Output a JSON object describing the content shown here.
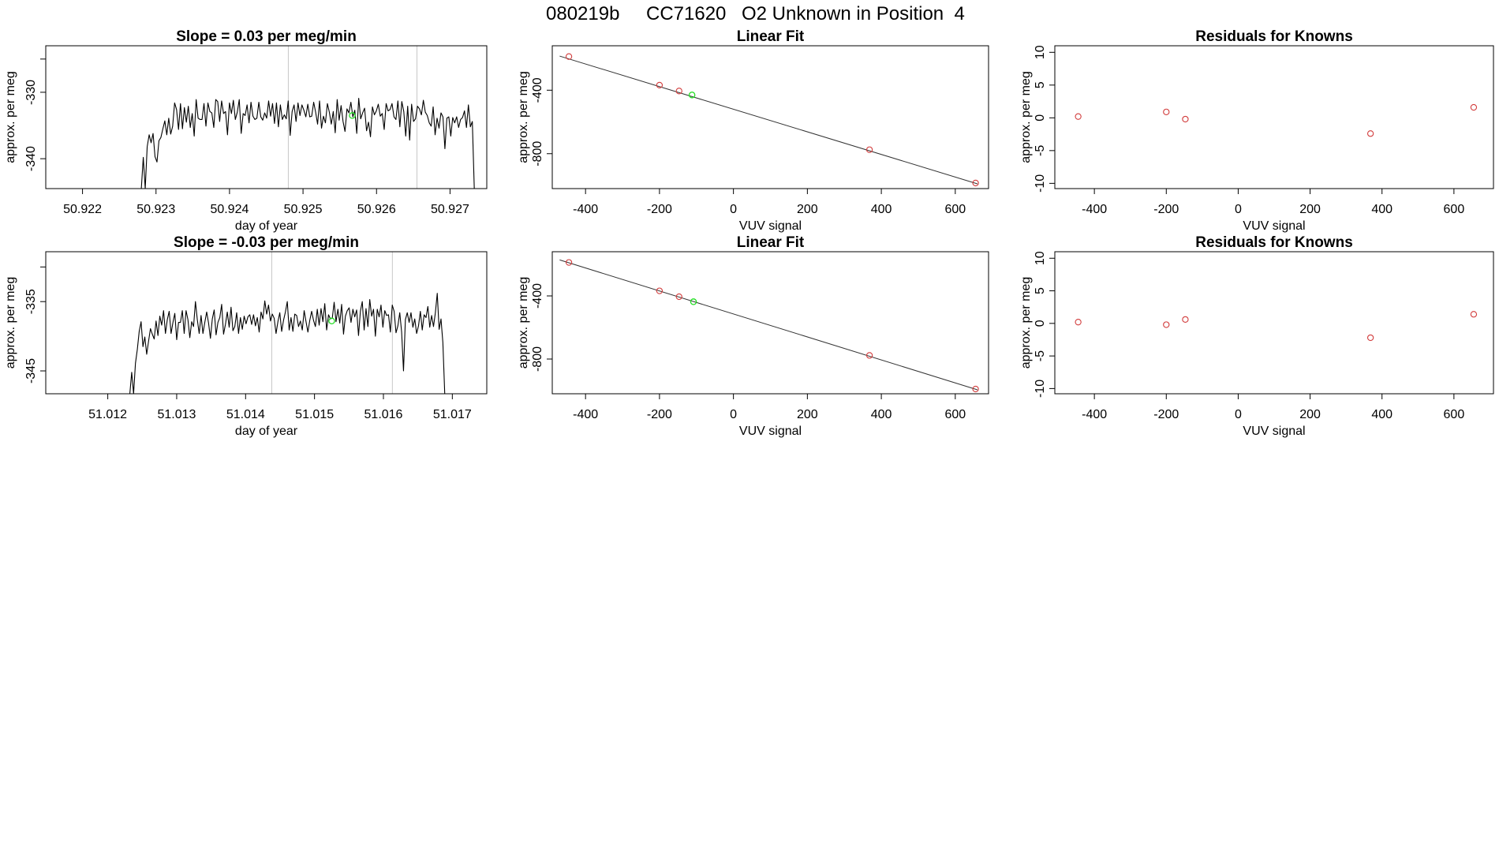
{
  "header": {
    "run_id": "080219b",
    "cylinder": "CC71620",
    "description": "O2 Unknown in Position  4"
  },
  "colors": {
    "trace": "#000000",
    "known_point": "#d23c3c",
    "unknown_point": "#22dd22",
    "divider": "#c8c8c8",
    "fit_line": "#333333"
  },
  "chart_data": [
    {
      "id": "time-series-1",
      "type": "line",
      "title": "Slope =  0.03  per meg/min",
      "xlabel": "day of year",
      "ylabel": "approx. per meg",
      "xlim": [
        50.9215,
        50.9275
      ],
      "ylim": [
        -344.5,
        -323
      ],
      "xticks": [
        50.922,
        50.923,
        50.924,
        50.925,
        50.926,
        50.927
      ],
      "xtick_labels": [
        "50.922",
        "50.923",
        "50.924",
        "50.925",
        "50.926",
        "50.927"
      ],
      "yticks": [
        -340,
        -330
      ],
      "ytick_labels": [
        "-340",
        "-330"
      ],
      "extra_ytick": -325,
      "dividers_x": [
        50.9248,
        50.92655
      ],
      "series_x_range": [
        50.9228,
        50.92733
      ],
      "series_y": [
        -344.5,
        -339.8,
        -344.5,
        -338.2,
        -336.4,
        -337.6,
        -336.2,
        -339.7,
        -340.5,
        -337.3,
        -336.8,
        -335.5,
        -334.3,
        -336.4,
        -333.9,
        -336.3,
        -335.1,
        -331.6,
        -332.6,
        -335.6,
        -331.7,
        -335.5,
        -332.3,
        -334.5,
        -332.1,
        -335.3,
        -333.2,
        -336.6,
        -331.1,
        -333.9,
        -334.1,
        -334.1,
        -331.7,
        -335.1,
        -331.6,
        -332.9,
        -333.1,
        -335.3,
        -331.1,
        -331.4,
        -334.4,
        -331.3,
        -333.2,
        -332.9,
        -336.4,
        -331.6,
        -333.2,
        -331.2,
        -334.1,
        -333.0,
        -331.1,
        -336.2,
        -333.2,
        -333.5,
        -331.9,
        -334.6,
        -331.5,
        -333.6,
        -334.1,
        -333.9,
        -331.5,
        -333.7,
        -334.2,
        -333.1,
        -333.9,
        -331.3,
        -333.6,
        -331.7,
        -334.7,
        -331.6,
        -335.2,
        -331.9,
        -334.1,
        -333.4,
        -334.0,
        -331.3,
        -336.5,
        -332.9,
        -331.9,
        -334.4,
        -331.6,
        -333.5,
        -331.9,
        -332.7,
        -333.7,
        -331.8,
        -333.7,
        -333.6,
        -331.5,
        -333.0,
        -334.8,
        -331.3,
        -335.4,
        -333.6,
        -334.6,
        -331.7,
        -333.0,
        -334.8,
        -332.9,
        -336.1,
        -331.1,
        -334.2,
        -332.0,
        -334.4,
        -335.9,
        -332.5,
        -333.1,
        -331.5,
        -333.7,
        -332.7,
        -336.2,
        -330.9,
        -334.0,
        -333.1,
        -332.4,
        -335.8,
        -334.5,
        -336.7,
        -332.2,
        -333.4,
        -332.8,
        -331.8,
        -333.6,
        -333.2,
        -335.6,
        -331.7,
        -332.8,
        -332.6,
        -331.7,
        -333.7,
        -334.1,
        -331.3,
        -335.2,
        -331.4,
        -332.9,
        -336.6,
        -332.1,
        -337.2,
        -331.8,
        -334.4,
        -334.0,
        -332.1,
        -332.5,
        -333.4,
        -331.2,
        -333.0,
        -333.5,
        -334.6,
        -335.1,
        -332.2,
        -336.4,
        -333.9,
        -335.4,
        -333.1,
        -333.7,
        -338.5,
        -333.9,
        -333.7,
        -336.6,
        -333.8,
        -334.6,
        -333.7,
        -335.3,
        -334.1,
        -333.8,
        -332.8,
        -335.3,
        -331.9,
        -335.2,
        -334.4,
        -344.5
      ],
      "unknown_point": [
        50.92567,
        -333.5
      ]
    },
    {
      "id": "linear-fit-1",
      "type": "scatter",
      "title": "Linear Fit",
      "xlabel": "VUV signal",
      "ylabel": "approx. per meg",
      "xlim": [
        -490,
        690
      ],
      "ylim": [
        -1020,
        -120
      ],
      "xticks": [
        -400,
        -200,
        0,
        200,
        400,
        600
      ],
      "xtick_labels": [
        "-400",
        "-200",
        "0",
        "200",
        "400",
        "600"
      ],
      "yticks": [
        -800,
        -400
      ],
      "ytick_labels": [
        "-800",
        "-400"
      ],
      "fit_line": [
        [
          -470,
          -185
        ],
        [
          660,
          -990
        ]
      ],
      "known_points": [
        [
          -445,
          -188
        ],
        [
          -200,
          -368
        ],
        [
          -147,
          -405
        ],
        [
          368,
          -775
        ],
        [
          655,
          -985
        ]
      ],
      "unknown_point": [
        -112,
        -430
      ]
    },
    {
      "id": "residuals-1",
      "type": "scatter",
      "title": "Residuals for Knowns",
      "xlabel": "VUV signal",
      "ylabel": "approx. per meg",
      "xlim": [
        -510,
        710
      ],
      "ylim": [
        -10.8,
        11
      ],
      "xticks": [
        -400,
        -200,
        0,
        200,
        400,
        600
      ],
      "xtick_labels": [
        "-400",
        "-200",
        "0",
        "200",
        "400",
        "600"
      ],
      "yticks": [
        -10,
        -5,
        0,
        5,
        10
      ],
      "ytick_labels": [
        "-10",
        "-5",
        "0",
        "5",
        "10"
      ],
      "known_points": [
        [
          -445,
          0.2
        ],
        [
          -200,
          0.9
        ],
        [
          -147,
          -0.2
        ],
        [
          368,
          -2.4
        ],
        [
          655,
          1.6
        ]
      ]
    },
    {
      "id": "time-series-2",
      "type": "line",
      "title": "Slope =  -0.03  per meg/min",
      "xlabel": "day of year",
      "ylabel": "approx. per meg",
      "xlim": [
        51.0111,
        51.0175
      ],
      "ylim": [
        -348.3,
        -327.8
      ],
      "xticks": [
        51.012,
        51.013,
        51.014,
        51.015,
        51.016,
        51.017
      ],
      "xtick_labels": [
        "51.012",
        "51.013",
        "51.014",
        "51.015",
        "51.016",
        "51.017"
      ],
      "yticks": [
        -345,
        -335
      ],
      "ytick_labels": [
        "-345",
        "-335"
      ],
      "extra_ytick": -330,
      "dividers_x": [
        51.01438,
        51.01613
      ],
      "series_x_range": [
        51.01232,
        51.01689
      ],
      "series_y": [
        -348.3,
        -345.2,
        -348.3,
        -343.9,
        -341.9,
        -339.3,
        -337.9,
        -341.5,
        -340.1,
        -342.6,
        -340.7,
        -338.9,
        -339.7,
        -340.4,
        -337.8,
        -339.9,
        -337.1,
        -338.4,
        -336.3,
        -339.6,
        -337.6,
        -336.4,
        -339.6,
        -338.0,
        -336.7,
        -340.5,
        -338.0,
        -338.0,
        -336.3,
        -339.6,
        -336.3,
        -337.6,
        -340.2,
        -337.9,
        -338.6,
        -335.0,
        -337.6,
        -339.6,
        -337.0,
        -339.6,
        -338.0,
        -336.5,
        -338.1,
        -340.3,
        -337.5,
        -336.2,
        -339.8,
        -338.0,
        -337.3,
        -335.4,
        -339.7,
        -338.3,
        -336.5,
        -338.7,
        -335.8,
        -339.2,
        -338.6,
        -336.6,
        -339.6,
        -337.3,
        -339.0,
        -337.1,
        -338.2,
        -337.2,
        -336.9,
        -338.3,
        -336.9,
        -338.5,
        -337.3,
        -339.4,
        -336.5,
        -337.5,
        -334.9,
        -336.8,
        -335.5,
        -337.8,
        -336.8,
        -337.4,
        -339.6,
        -337.9,
        -336.6,
        -339.3,
        -337.7,
        -336.5,
        -335.0,
        -339.1,
        -337.3,
        -339.3,
        -336.8,
        -337.0,
        -338.6,
        -337.8,
        -339.1,
        -336.3,
        -337.9,
        -339.4,
        -337.7,
        -336.4,
        -337.7,
        -338.6,
        -336.1,
        -338.4,
        -336.0,
        -337.9,
        -335.3,
        -339.1,
        -336.9,
        -337.5,
        -337.4,
        -335.1,
        -337.9,
        -336.1,
        -338.1,
        -335.4,
        -339.7,
        -337.1,
        -336.3,
        -335.9,
        -338.0,
        -336.1,
        -337.2,
        -336.2,
        -339.9,
        -336.4,
        -335.0,
        -339.1,
        -336.0,
        -338.6,
        -334.7,
        -337.1,
        -336.1,
        -340.0,
        -336.1,
        -337.2,
        -335.5,
        -338.7,
        -336.3,
        -337.0,
        -336.9,
        -339.4,
        -335.5,
        -336.4,
        -339.5,
        -338.5,
        -336.6,
        -339.4,
        -345.0,
        -337.6,
        -336.6,
        -338.0,
        -336.6,
        -338.7,
        -337.5,
        -339.6,
        -338.5,
        -336.4,
        -339.1,
        -336.9,
        -337.3,
        -335.7,
        -338.7,
        -337.0,
        -338.6,
        -336.6,
        -333.8,
        -339.0,
        -337.5,
        -340.9,
        -348.3
      ],
      "unknown_point": [
        51.01525,
        -337.8
      ]
    },
    {
      "id": "linear-fit-2",
      "type": "scatter",
      "title": "Linear Fit",
      "xlabel": "VUV signal",
      "ylabel": "approx. per meg",
      "xlim": [
        -490,
        690
      ],
      "ylim": [
        -1020,
        -120
      ],
      "xticks": [
        -400,
        -200,
        0,
        200,
        400,
        600
      ],
      "xtick_labels": [
        "-400",
        "-200",
        "0",
        "200",
        "400",
        "600"
      ],
      "yticks": [
        -800,
        -400
      ],
      "ytick_labels": [
        "-800",
        "-400"
      ],
      "fit_line": [
        [
          -470,
          -172
        ],
        [
          660,
          -995
        ]
      ],
      "known_points": [
        [
          -445,
          -188
        ],
        [
          -200,
          -368
        ],
        [
          -147,
          -405
        ],
        [
          368,
          -777
        ],
        [
          655,
          -990
        ]
      ],
      "unknown_point": [
        -108,
        -437
      ]
    },
    {
      "id": "residuals-2",
      "type": "scatter",
      "title": "Residuals for Knowns",
      "xlabel": "VUV signal",
      "ylabel": "approx. per meg",
      "xlim": [
        -510,
        710
      ],
      "ylim": [
        -10.8,
        11
      ],
      "xticks": [
        -400,
        -200,
        0,
        200,
        400,
        600
      ],
      "xtick_labels": [
        "-400",
        "-200",
        "0",
        "200",
        "400",
        "600"
      ],
      "yticks": [
        -10,
        -5,
        0,
        5,
        10
      ],
      "ytick_labels": [
        "-10",
        "-5",
        "0",
        "5",
        "10"
      ],
      "known_points": [
        [
          -445,
          0.2
        ],
        [
          -200,
          -0.2
        ],
        [
          -147,
          0.6
        ],
        [
          368,
          -2.2
        ],
        [
          655,
          1.4
        ]
      ]
    }
  ]
}
